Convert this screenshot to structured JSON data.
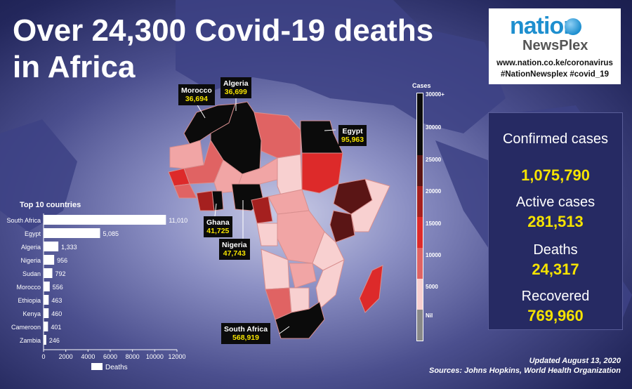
{
  "title": "Over 24,300 Covid-19 deaths in Africa",
  "brand": {
    "name_part1": "nation",
    "name_part2": "NewsPlex",
    "url": "www.nation.co.ke/coronavirus",
    "hashtags": "#NationNewsplex #covid_19"
  },
  "stats": [
    {
      "label": "Confirmed cases",
      "value": "1,075,790"
    },
    {
      "label": "Active cases",
      "value": "281,513"
    },
    {
      "label": "Deaths",
      "value": "24,317"
    },
    {
      "label": "Recovered",
      "value": "769,960"
    }
  ],
  "callouts": [
    {
      "country": "Morocco",
      "cases": "36,694"
    },
    {
      "country": "Algeria",
      "cases": "36,699"
    },
    {
      "country": "Egypt",
      "cases": "95,963"
    },
    {
      "country": "Ghana",
      "cases": "41,725"
    },
    {
      "country": "Nigeria",
      "cases": "47,743"
    },
    {
      "country": "South Africa",
      "cases": "568,919"
    }
  ],
  "footer": {
    "updated": "Updated August 13, 2020",
    "sources": "Sources: Johns Hopkins, World Health Organization"
  },
  "map_legend": {
    "title": "Cases",
    "ticks": [
      "30000+",
      "30000",
      "25000",
      "20000",
      "15000",
      "10000",
      "5000",
      "Nil"
    ],
    "colors": {
      "top": "#0b0b0b",
      "c25": "#5a1515",
      "c20": "#a5201f",
      "c15": "#dd2a2a",
      "c10": "#e06363",
      "c5": "#f1a5a5",
      "nil_light": "#f8d0d0",
      "nil": "#888888"
    }
  },
  "chart_data": {
    "type": "bar",
    "orientation": "horizontal",
    "title": "Top 10 countries",
    "categories": [
      "South Africa",
      "Egypt",
      "Algeria",
      "Nigeria",
      "Sudan",
      "Morocco",
      "Ethiopia",
      "Kenya",
      "Cameroon",
      "Zambia"
    ],
    "series": [
      {
        "name": "Deaths",
        "values": [
          11010,
          5085,
          1333,
          956,
          792,
          556,
          463,
          460,
          401,
          246
        ]
      }
    ],
    "value_labels": [
      "11,010",
      "5,085",
      "1,333",
      "956",
      "792",
      "556",
      "463",
      "460",
      "401",
      "246"
    ],
    "xlim": [
      0,
      12000
    ],
    "xticks": [
      0,
      2000,
      4000,
      6000,
      8000,
      10000,
      12000
    ],
    "legend": "bottom",
    "grid": false
  }
}
